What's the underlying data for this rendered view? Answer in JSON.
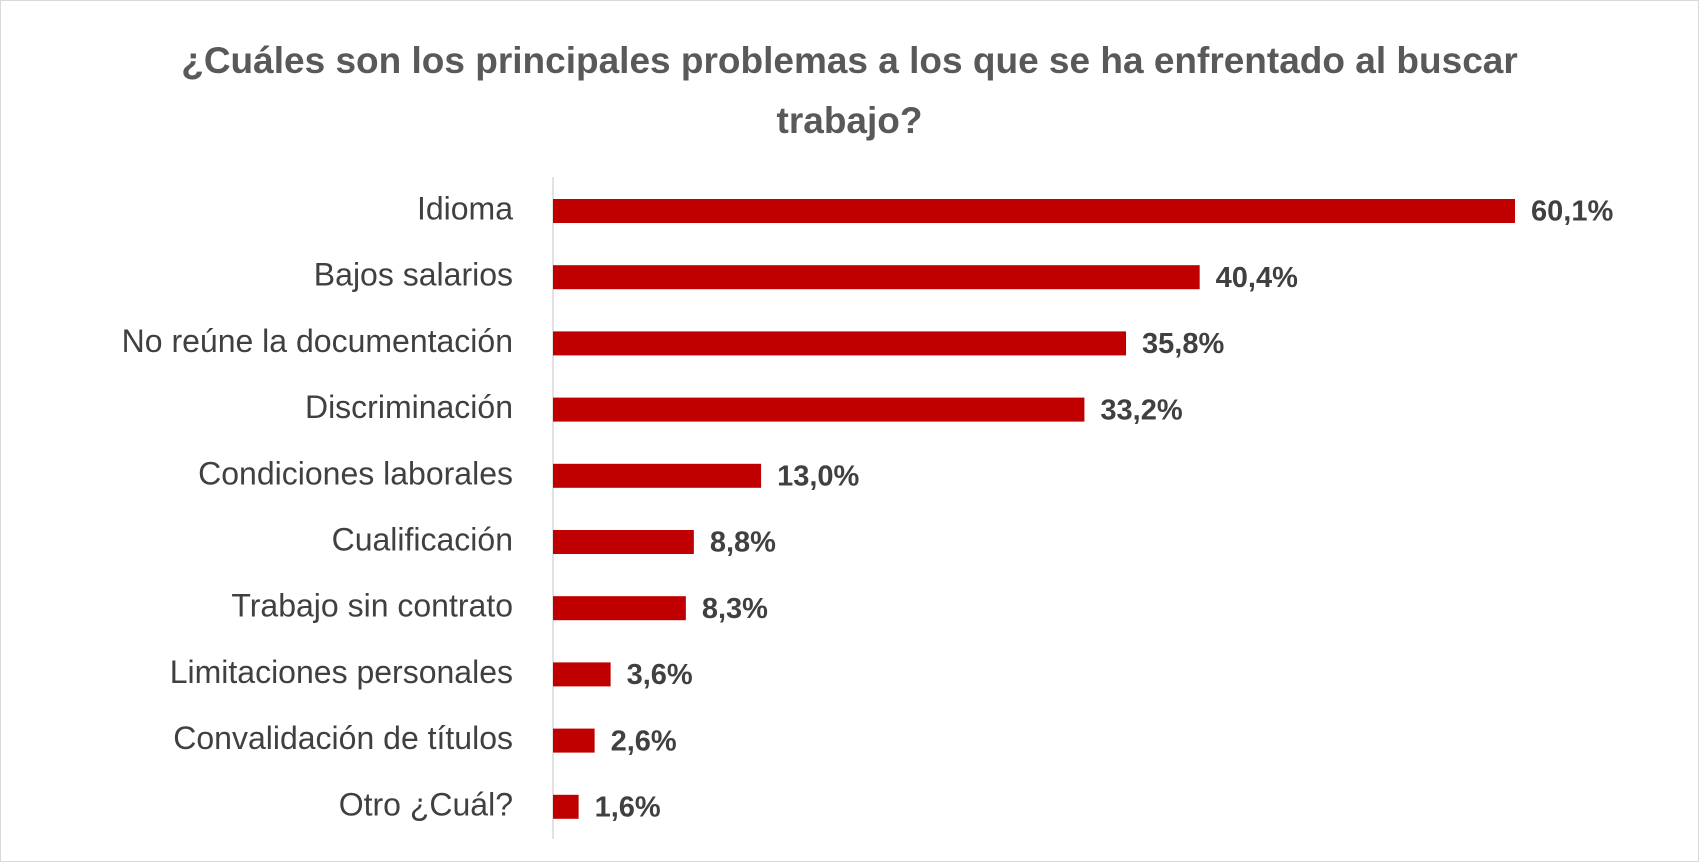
{
  "chart_data": {
    "type": "bar",
    "orientation": "horizontal",
    "title": "¿Cuáles son los principales problemas a los que se ha enfrentado al buscar trabajo?",
    "categories": [
      "Idioma",
      "Bajos salarios",
      "No reúne la documentación",
      "Discriminación",
      "Condiciones laborales",
      "Cualificación",
      "Trabajo sin contrato",
      "Limitaciones personales",
      "Convalidación de títulos",
      "Otro ¿Cuál?"
    ],
    "values": [
      60.1,
      40.4,
      35.8,
      33.2,
      13.0,
      8.8,
      8.3,
      3.6,
      2.6,
      1.6
    ],
    "value_labels": [
      "60,1%",
      "40,4%",
      "35,8%",
      "33,2%",
      "13,0%",
      "8,8%",
      "8,3%",
      "3,6%",
      "2,6%",
      "1,6%"
    ],
    "color": "#c00000"
  }
}
